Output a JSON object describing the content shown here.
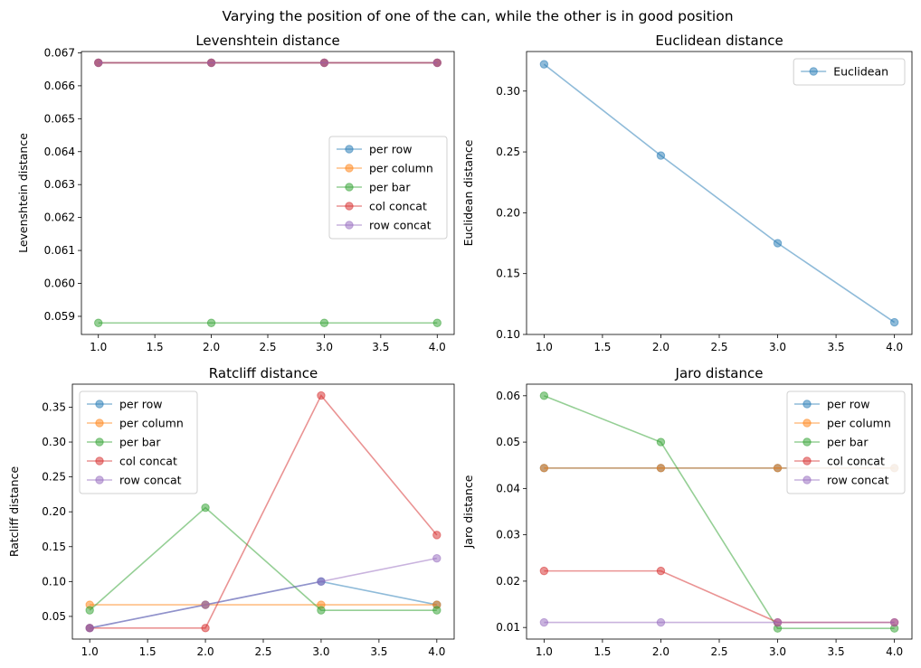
{
  "suptitle": "Varying the position of one of the can, while the other is in good position",
  "chart_data": [
    {
      "type": "line",
      "title": "Levenshtein distance",
      "xlabel": "",
      "ylabel": "Levenshtein distance",
      "x": [
        1,
        2,
        3,
        4
      ],
      "xlim": [
        0.85,
        4.15
      ],
      "ylim": [
        0.05845,
        0.06704
      ],
      "xticks": [
        1.0,
        1.5,
        2.0,
        2.5,
        3.0,
        3.5,
        4.0
      ],
      "yticks": [
        0.059,
        0.06,
        0.061,
        0.062,
        0.063,
        0.064,
        0.065,
        0.066,
        0.067
      ],
      "ytick_decimals": 3,
      "legend_position": "center-right",
      "series": [
        {
          "name": "per row",
          "color": "#1f77b4",
          "values": [
            0.0667,
            0.0667,
            0.0667,
            0.0667
          ]
        },
        {
          "name": "per column",
          "color": "#ff7f0e",
          "values": [
            0.0667,
            0.0667,
            0.0667,
            0.0667
          ]
        },
        {
          "name": "per bar",
          "color": "#2ca02c",
          "values": [
            0.0588,
            0.0588,
            0.0588,
            0.0588
          ]
        },
        {
          "name": "col concat",
          "color": "#d62728",
          "values": [
            0.0667,
            0.0667,
            0.0667,
            0.0667
          ]
        },
        {
          "name": "row concat",
          "color": "#9467bd",
          "values": [
            0.0667,
            0.0667,
            0.0667,
            0.0667
          ]
        }
      ]
    },
    {
      "type": "line",
      "title": "Euclidean distance",
      "xlabel": "",
      "ylabel": "Euclidean distance",
      "x": [
        1,
        2,
        3,
        4
      ],
      "xlim": [
        0.85,
        4.15
      ],
      "ylim": [
        0.1,
        0.3325
      ],
      "xticks": [
        1.0,
        1.5,
        2.0,
        2.5,
        3.0,
        3.5,
        4.0
      ],
      "yticks": [
        0.1,
        0.15,
        0.2,
        0.25,
        0.3
      ],
      "ytick_decimals": 2,
      "legend_position": "top-right",
      "series": [
        {
          "name": "Euclidean",
          "color": "#1f77b4",
          "values": [
            0.322,
            0.247,
            0.175,
            0.11
          ]
        }
      ]
    },
    {
      "type": "line",
      "title": "Ratcliff distance",
      "xlabel": "",
      "ylabel": "Ratcliff distance",
      "x": [
        1,
        2,
        3,
        4
      ],
      "xlim": [
        0.85,
        4.15
      ],
      "ylim": [
        0.0175,
        0.383
      ],
      "xticks": [
        1.0,
        1.5,
        2.0,
        2.5,
        3.0,
        3.5,
        4.0
      ],
      "yticks": [
        0.05,
        0.1,
        0.15,
        0.2,
        0.25,
        0.3,
        0.35
      ],
      "ytick_decimals": 2,
      "legend_position": "top-left",
      "series": [
        {
          "name": "per row",
          "color": "#1f77b4",
          "values": [
            0.0333,
            0.0667,
            0.1,
            0.0667
          ]
        },
        {
          "name": "per column",
          "color": "#ff7f0e",
          "values": [
            0.0667,
            0.0667,
            0.0667,
            0.0667
          ]
        },
        {
          "name": "per bar",
          "color": "#2ca02c",
          "values": [
            0.0588,
            0.2059,
            0.0588,
            0.0588
          ]
        },
        {
          "name": "col concat",
          "color": "#d62728",
          "values": [
            0.0333,
            0.0333,
            0.3667,
            0.1667
          ]
        },
        {
          "name": "row concat",
          "color": "#9467bd",
          "values": [
            0.0333,
            0.0667,
            0.1,
            0.1333
          ]
        }
      ]
    },
    {
      "type": "line",
      "title": "Jaro distance",
      "xlabel": "",
      "ylabel": "Jaro distance",
      "x": [
        1,
        2,
        3,
        4
      ],
      "xlim": [
        0.85,
        4.15
      ],
      "ylim": [
        0.0075,
        0.0625
      ],
      "xticks": [
        1.0,
        1.5,
        2.0,
        2.5,
        3.0,
        3.5,
        4.0
      ],
      "yticks": [
        0.01,
        0.02,
        0.03,
        0.04,
        0.05,
        0.06
      ],
      "ytick_decimals": 2,
      "legend_position": "top-right",
      "series": [
        {
          "name": "per row",
          "color": "#1f77b4",
          "values": [
            0.0444,
            0.0444,
            0.0444,
            0.0444
          ]
        },
        {
          "name": "per column",
          "color": "#ff7f0e",
          "values": [
            0.0444,
            0.0444,
            0.0444,
            0.0444
          ]
        },
        {
          "name": "per bar",
          "color": "#2ca02c",
          "values": [
            0.06,
            0.05,
            0.0098,
            0.0098
          ]
        },
        {
          "name": "col concat",
          "color": "#d62728",
          "values": [
            0.0222,
            0.0222,
            0.0111,
            0.0111
          ]
        },
        {
          "name": "row concat",
          "color": "#9467bd",
          "values": [
            0.0111,
            0.0111,
            0.0111,
            0.0111
          ]
        }
      ]
    }
  ]
}
